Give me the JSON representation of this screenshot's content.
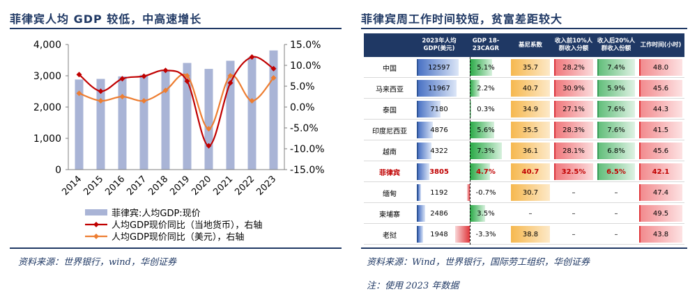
{
  "left_panel": {
    "title": "菲律宾人均 GDP 较低，中高速增长",
    "source": "资料来源：世界银行，wind，华创证券"
  },
  "right_panel": {
    "title": "菲律宾周工作时间较短，贫富差距较大",
    "source": "资料来源：Wind，世界银行，国际劳工组织，华创证券",
    "note": "注：使用 2023 年数据"
  },
  "colors": {
    "title": "#1f3864",
    "bar": "#a9b4d6",
    "line_local": "#c00000",
    "line_usd": "#ed7d31",
    "table_header": "#1f3864",
    "philippines_text": "#c00000"
  },
  "chart_data": [
    {
      "type": "bar+line",
      "categories": [
        "2014",
        "2015",
        "2016",
        "2017",
        "2018",
        "2019",
        "2020",
        "2021",
        "2022",
        "2023"
      ],
      "series": [
        {
          "name": "菲律宾:人均GDP:现价",
          "kind": "bar",
          "axis": "left",
          "values": [
            2880,
            2900,
            2980,
            3030,
            3150,
            3410,
            3220,
            3480,
            3590,
            3810
          ]
        },
        {
          "name": "人均GDP现价同比（当地货币），右轴",
          "kind": "line",
          "axis": "right",
          "values": [
            7.8,
            3.8,
            6.8,
            7.4,
            8.8,
            6.2,
            -9.3,
            5.8,
            12.0,
            9.2
          ]
        },
        {
          "name": "人均GDP现价同比（美元），右轴",
          "kind": "line",
          "axis": "right",
          "values": [
            3.3,
            1.5,
            2.5,
            1.5,
            4.0,
            7.5,
            -5.2,
            7.5,
            1.5,
            7.0
          ]
        }
      ],
      "ylim_left": [
        0,
        4000
      ],
      "yticks_left": [
        "4,000",
        "3,000",
        "2,000",
        "1,000",
        "0"
      ],
      "ylim_right": [
        -15,
        15
      ],
      "yticks_right": [
        "15.0%",
        "10.0%",
        "5.0%",
        "0.0%",
        "-5.0%",
        "-10.0%",
        "-15.0%"
      ],
      "grid": false,
      "legend_position": "bottom"
    },
    {
      "type": "table",
      "columns": [
        "",
        "2023年人均GDP(美元)",
        "GDP 18-23CAGR",
        "基尼系数",
        "收入前10%人群收入分额",
        "收入后20%人群收入份额",
        "工作时间(小时)"
      ],
      "rows": [
        {
          "country": "中国",
          "gdp": 12597,
          "gdp_text": "12597",
          "cagr": 5.1,
          "cagr_text": "5.1%",
          "gini": 35.7,
          "gini_text": "35.7",
          "top10": 28.2,
          "top10_text": "28.2%",
          "bottom20": 7.4,
          "bottom20_text": "7.4%",
          "hours": 48.0,
          "hours_text": "48.0"
        },
        {
          "country": "马来西亚",
          "gdp": 11967,
          "gdp_text": "11967",
          "cagr": 2.2,
          "cagr_text": "2.2%",
          "gini": 40.7,
          "gini_text": "40.7",
          "top10": 30.9,
          "top10_text": "30.9%",
          "bottom20": 5.9,
          "bottom20_text": "5.9%",
          "hours": 45.6,
          "hours_text": "45.6"
        },
        {
          "country": "泰国",
          "gdp": 7180,
          "gdp_text": "7180",
          "cagr": 0.3,
          "cagr_text": "0.3%",
          "gini": 34.9,
          "gini_text": "34.9",
          "top10": 27.1,
          "top10_text": "27.1%",
          "bottom20": 7.6,
          "bottom20_text": "7.6%",
          "hours": 44.3,
          "hours_text": "44.3"
        },
        {
          "country": "印度尼西亚",
          "gdp": 4876,
          "gdp_text": "4876",
          "cagr": 5.6,
          "cagr_text": "5.6%",
          "gini": 35.5,
          "gini_text": "35.5",
          "top10": 28.3,
          "top10_text": "28.3%",
          "bottom20": 7.6,
          "bottom20_text": "7.6%",
          "hours": 41.5,
          "hours_text": "41.5"
        },
        {
          "country": "越南",
          "gdp": 4322,
          "gdp_text": "4322",
          "cagr": 7.3,
          "cagr_text": "7.3%",
          "gini": 36.1,
          "gini_text": "36.1",
          "top10": 28.1,
          "top10_text": "28.1%",
          "bottom20": 6.8,
          "bottom20_text": "6.8%",
          "hours": 45.6,
          "hours_text": "45.6"
        },
        {
          "country": "菲律宾",
          "gdp": 3805,
          "gdp_text": "3805",
          "cagr": 4.7,
          "cagr_text": "4.7%",
          "gini": 40.7,
          "gini_text": "40.7",
          "top10": 32.5,
          "top10_text": "32.5%",
          "bottom20": 6.5,
          "bottom20_text": "6.5%",
          "hours": 42.1,
          "hours_text": "42.1",
          "highlight": true
        },
        {
          "country": "缅甸",
          "gdp": 1192,
          "gdp_text": "1192",
          "cagr": -0.7,
          "cagr_text": "-0.7%",
          "gini": 30.7,
          "gini_text": "30.7",
          "top10": null,
          "top10_text": "–",
          "bottom20": null,
          "bottom20_text": "–",
          "hours": 47.4,
          "hours_text": "47.4"
        },
        {
          "country": "柬埔寨",
          "gdp": 2486,
          "gdp_text": "2486",
          "cagr": 3.5,
          "cagr_text": "3.5%",
          "gini": null,
          "gini_text": "–",
          "top10": null,
          "top10_text": "–",
          "bottom20": null,
          "bottom20_text": "–",
          "hours": 49.5,
          "hours_text": "49.5"
        },
        {
          "country": "老挝",
          "gdp": 1948,
          "gdp_text": "1948",
          "cagr": -3.3,
          "cagr_text": "-3.3%",
          "gini": 38.8,
          "gini_text": "38.8",
          "top10": null,
          "top10_text": "–",
          "bottom20": null,
          "bottom20_text": "–",
          "hours": 43.8,
          "hours_text": "43.8"
        }
      ]
    }
  ]
}
